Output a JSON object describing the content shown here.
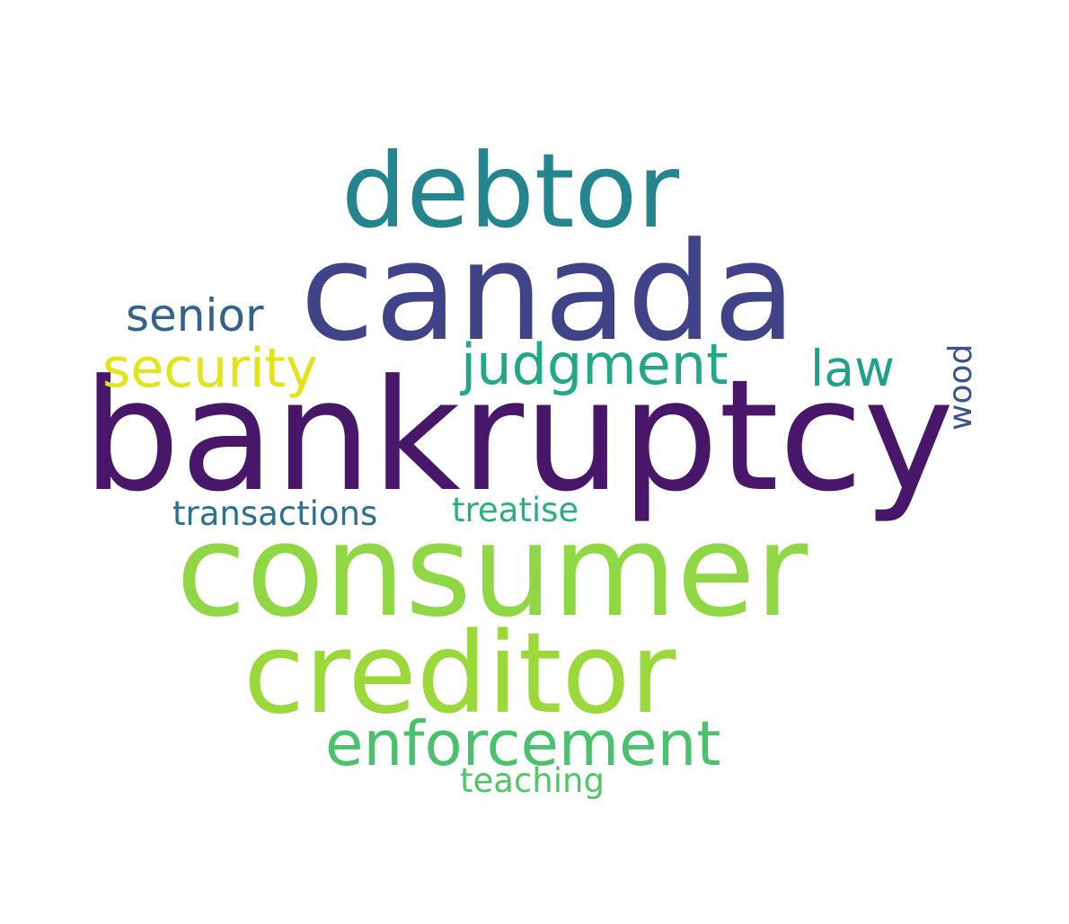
{
  "words": [
    {
      "key": "bankruptcy",
      "text": "bankruptcy",
      "color": "#481769",
      "orientation": "horizontal"
    },
    {
      "key": "canada",
      "text": "canada",
      "color": "#404387",
      "orientation": "horizontal"
    },
    {
      "key": "consumer",
      "text": "consumer",
      "color": "#8fd744",
      "orientation": "horizontal"
    },
    {
      "key": "creditor",
      "text": "creditor",
      "color": "#9bd93b",
      "orientation": "horizontal"
    },
    {
      "key": "debtor",
      "text": "debtor",
      "color": "#25858e",
      "orientation": "horizontal"
    },
    {
      "key": "enforcement",
      "text": "enforcement",
      "color": "#4ac16d",
      "orientation": "horizontal"
    },
    {
      "key": "judgment",
      "text": "judgment",
      "color": "#22a884",
      "orientation": "horizontal"
    },
    {
      "key": "security",
      "text": "security",
      "color": "#e2e418",
      "orientation": "horizontal"
    },
    {
      "key": "senior",
      "text": "senior",
      "color": "#33638d",
      "orientation": "horizontal"
    },
    {
      "key": "law",
      "text": "law",
      "color": "#1fa088",
      "orientation": "horizontal"
    },
    {
      "key": "wood",
      "text": "wood",
      "color": "#3b528b",
      "orientation": "vertical"
    },
    {
      "key": "transactions",
      "text": "transactions",
      "color": "#2d708e",
      "orientation": "horizontal"
    },
    {
      "key": "treatise",
      "text": "treatise",
      "color": "#2ab07f",
      "orientation": "horizontal"
    },
    {
      "key": "teaching",
      "text": "teaching",
      "color": "#52c569",
      "orientation": "horizontal"
    }
  ]
}
